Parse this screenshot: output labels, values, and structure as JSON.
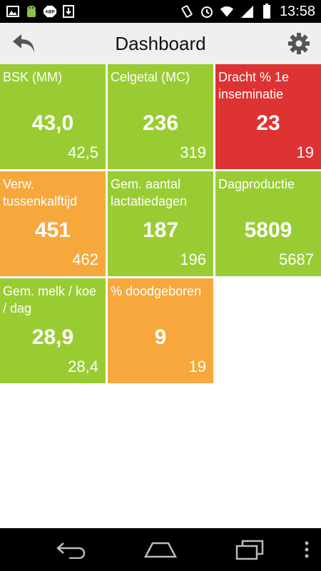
{
  "status_bar": {
    "time": "13:58",
    "left_icons": [
      "image-icon",
      "android-icon",
      "adblock-icon",
      "download-icon"
    ],
    "right_icons": [
      "vibrate-icon",
      "alarm-icon",
      "wifi-icon",
      "signal-icon",
      "battery-icon"
    ]
  },
  "action_bar": {
    "title": "Dashboard"
  },
  "colors": {
    "green": "#99cc33",
    "red": "#dd3333",
    "orange": "#f6a83d"
  },
  "tiles": [
    {
      "label": "BSK (MM)",
      "value": "43,0",
      "ref": "42,5",
      "status": "green"
    },
    {
      "label": "Celgetal (MC)",
      "value": "236",
      "ref": "319",
      "status": "green"
    },
    {
      "label": "Dracht % 1e inseminatie",
      "value": "23",
      "ref": "19",
      "status": "red"
    },
    {
      "label": "Verw. tussenkalftijd",
      "value": "451",
      "ref": "462",
      "status": "orange"
    },
    {
      "label": "Gem. aantal lactatiedagen",
      "value": "187",
      "ref": "196",
      "status": "green"
    },
    {
      "label": "Dagproductie",
      "value": "5809",
      "ref": "5687",
      "status": "green"
    },
    {
      "label": "Gem. melk / koe / dag",
      "value": "28,9",
      "ref": "28,4",
      "status": "green"
    },
    {
      "label": "% doodgeboren",
      "value": "9",
      "ref": "19",
      "status": "orange"
    }
  ]
}
